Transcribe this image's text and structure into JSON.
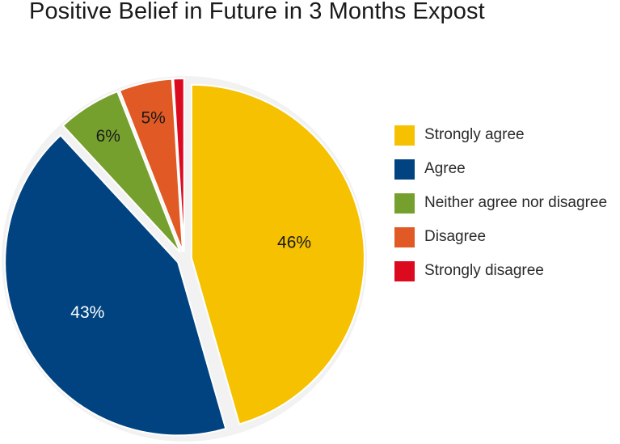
{
  "chart_data": {
    "type": "pie",
    "title": "Positive Belief in Future in 3 Months Expost",
    "slices": [
      {
        "label": "Strongly agree",
        "value": 46,
        "display": "46%",
        "color": "#F5C100",
        "text_color": "#1a1a1a"
      },
      {
        "label": "Agree",
        "value": 43,
        "display": "43%",
        "color": "#004380",
        "text_color": "#ffffff"
      },
      {
        "label": "Neither agree nor disagree",
        "value": 6,
        "display": "6%",
        "color": "#76A02E",
        "text_color": "#1a1a1a"
      },
      {
        "label": "Disagree",
        "value": 5,
        "display": "5%",
        "color": "#E15A25",
        "text_color": "#1a1a1a"
      },
      {
        "label": "Strongly disagree",
        "value": 1,
        "display": "",
        "color": "#DC0A1E",
        "text_color": "#1a1a1a"
      }
    ],
    "legend_position": "right"
  }
}
